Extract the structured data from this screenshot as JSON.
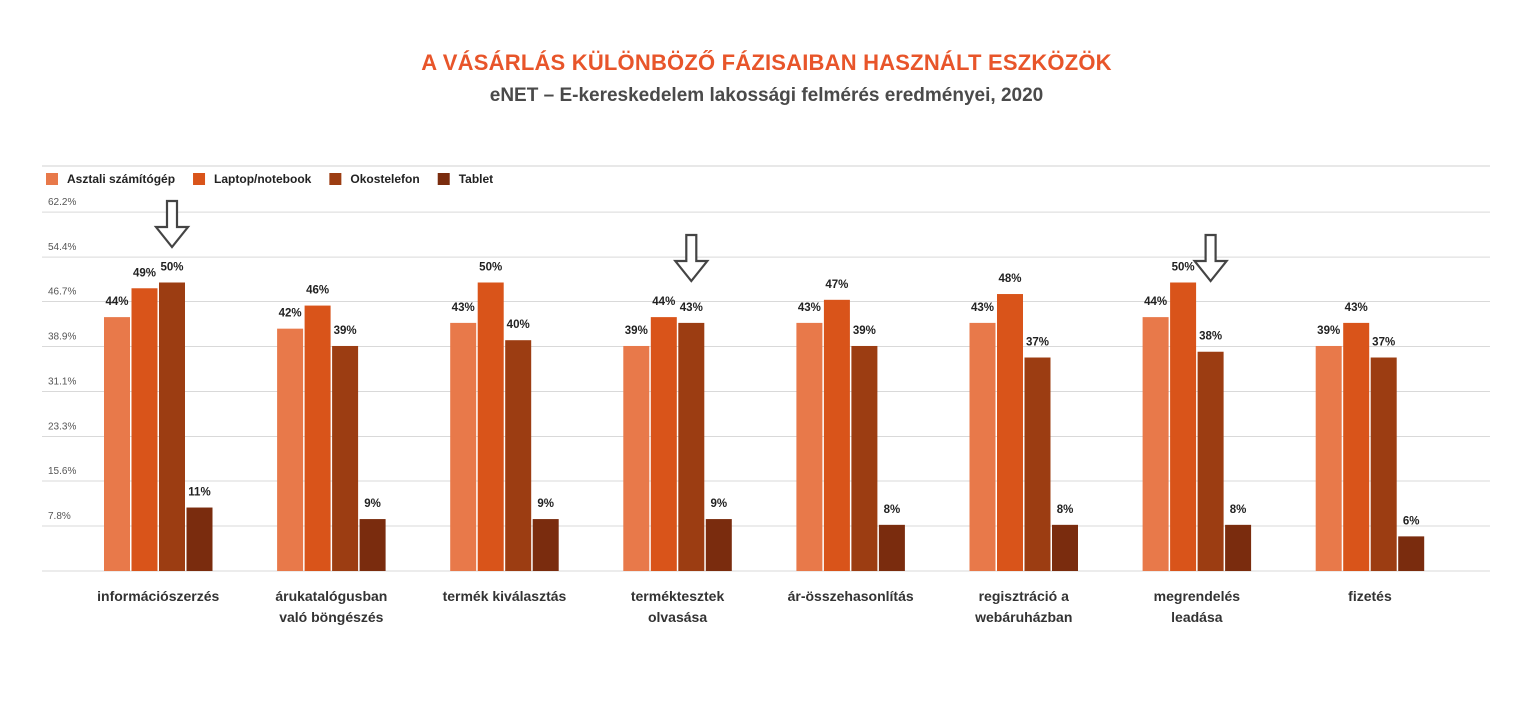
{
  "title": "A VÁSÁRLÁS KÜLÖNBÖZŐ FÁZISAIBAN HASZNÁLT ESZKÖZÖK",
  "subtitle": "eNET – E-kereskedelem lakossági felmérés eredményei, 2020",
  "chart_data": {
    "type": "bar",
    "title": "A VÁSÁRLÁS KÜLÖNBÖZŐ FÁZISAIBAN HASZNÁLT ESZKÖZÖK",
    "subtitle": "eNET – E-kereskedelem lakossági felmérés eredményei, 2020",
    "categories": [
      [
        "információszerzés"
      ],
      [
        "árukatalógusban",
        "való böngészés"
      ],
      [
        "termék kiválasztás"
      ],
      [
        "terméktesztek",
        "olvasása"
      ],
      [
        "ár-összehasonlítás"
      ],
      [
        "regisztráció a",
        "webáruházban"
      ],
      [
        "megrendelés",
        "leadása"
      ],
      [
        "fizetés"
      ]
    ],
    "series": [
      {
        "name": "Asztali számítógép",
        "color": "#e8794a",
        "values": [
          44,
          42,
          43,
          39,
          43,
          43,
          44,
          39
        ]
      },
      {
        "name": "Laptop/notebook",
        "color": "#d9541a",
        "values": [
          49,
          46,
          50,
          44,
          47,
          48,
          50,
          43
        ]
      },
      {
        "name": "Okostelefon",
        "color": "#9c3d12",
        "values": [
          50,
          39,
          40,
          43,
          39,
          37,
          38,
          37
        ]
      },
      {
        "name": "Tablet",
        "color": "#7a2c0e",
        "values": [
          11,
          9,
          9,
          9,
          8,
          8,
          8,
          6
        ]
      }
    ],
    "value_suffix": "%",
    "y_ticks": [
      "7.8%",
      "15.6%",
      "23.3%",
      "31.1%",
      "38.9%",
      "46.7%",
      "54.4%",
      "62.2%"
    ],
    "ylim": [
      0,
      70
    ],
    "xlabel": "",
    "ylabel": "",
    "grid": true,
    "legend_position": "top-left",
    "arrow_marker_categories": [
      0,
      3,
      6
    ],
    "gridline_color": "#d9d9d9",
    "arrow_color": "#444444"
  }
}
